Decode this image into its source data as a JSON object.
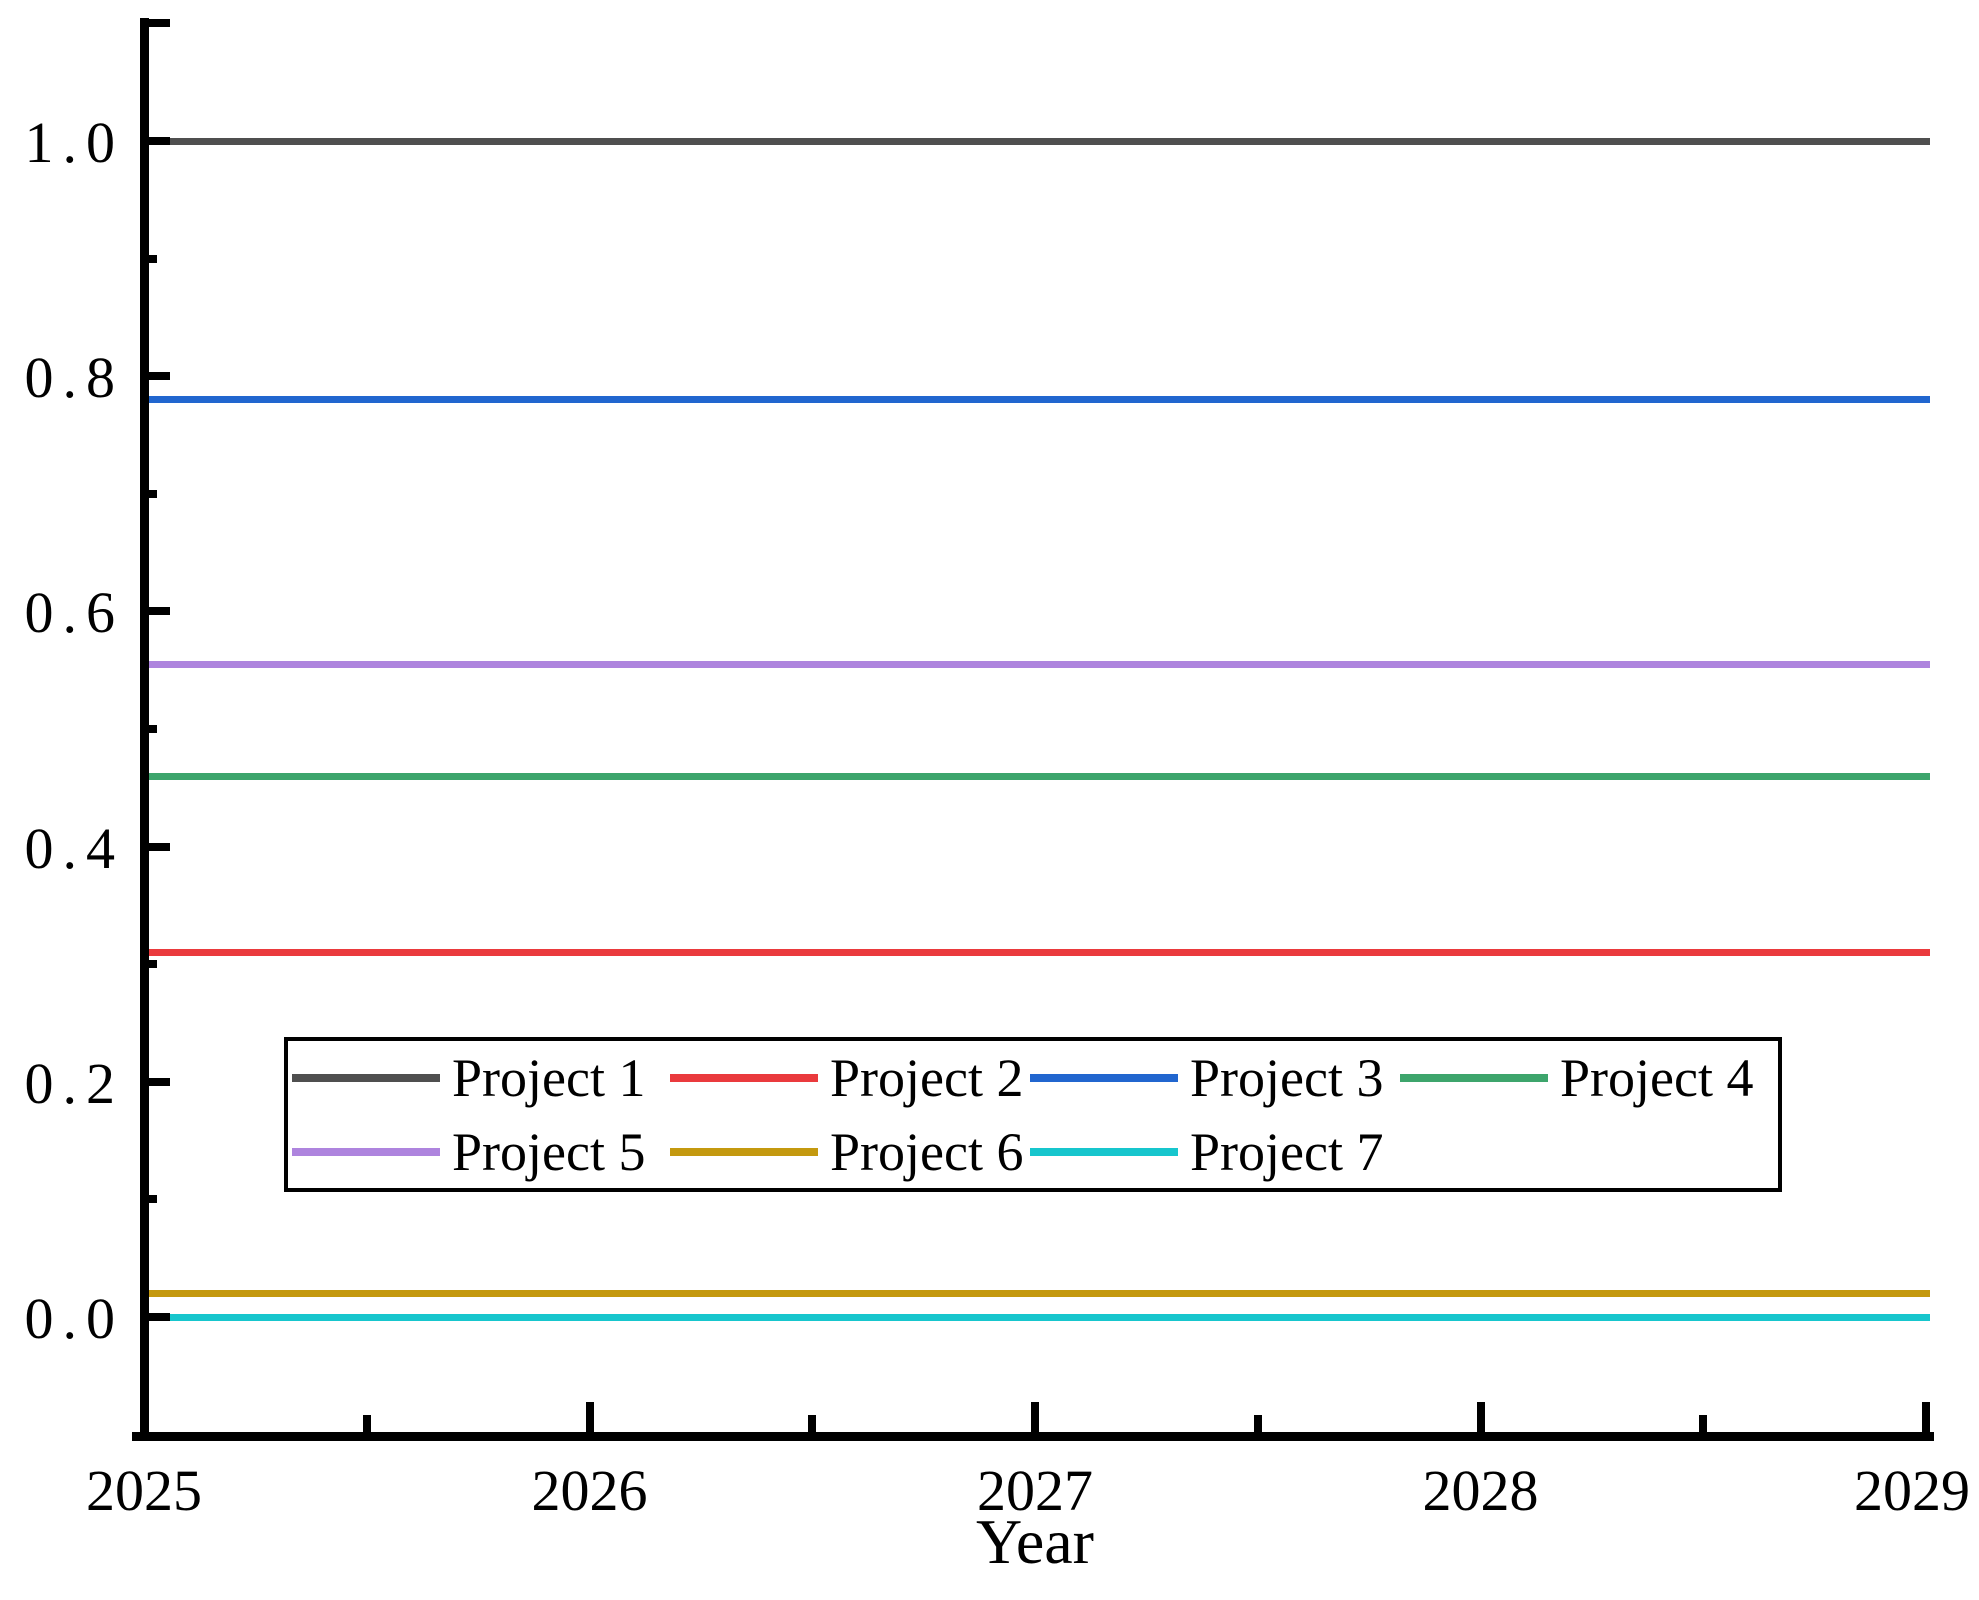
{
  "figure": {
    "background": "#ffffff",
    "text_color": "#000000"
  },
  "chart_data": {
    "type": "line",
    "xlabel": "Year",
    "ylabel": "",
    "xlim": [
      2025,
      2029
    ],
    "ylim": [
      -0.1,
      1.1
    ],
    "grid": false,
    "legend_position": "inside lower-center, 2 rows (4 + 3 entries)",
    "x": [
      2025,
      2029
    ],
    "x_major_ticks": [
      2025,
      2026,
      2027,
      2028,
      2029
    ],
    "x_minor_ticks": [
      2025.5,
      2026.5,
      2027.5,
      2028.5
    ],
    "x_tick_labels": [
      "2025",
      "2026",
      "2027",
      "2028",
      "2029"
    ],
    "y_major_ticks": [
      0.0,
      0.2,
      0.4,
      0.6,
      0.8,
      1.0
    ],
    "y_minor_ticks": [
      0.1,
      0.3,
      0.5,
      0.7,
      0.9
    ],
    "y_axis_cap_tick": 1.1,
    "y_tick_labels": [
      "0.0",
      "0.2",
      "0.4",
      "0.6",
      "0.8",
      "1.0"
    ],
    "series": [
      {
        "name": "Project 1",
        "value": 1.0,
        "values": [
          1.0,
          1.0
        ],
        "color": "#4f4f4f"
      },
      {
        "name": "Project 2",
        "value": 0.31,
        "values": [
          0.31,
          0.31
        ],
        "color": "#ea3a3d"
      },
      {
        "name": "Project 3",
        "value": 0.78,
        "values": [
          0.78,
          0.78
        ],
        "color": "#2166cf"
      },
      {
        "name": "Project 4",
        "value": 0.46,
        "values": [
          0.46,
          0.46
        ],
        "color": "#3da56c"
      },
      {
        "name": "Project 5",
        "value": 0.555,
        "values": [
          0.555,
          0.555
        ],
        "color": "#ae84de"
      },
      {
        "name": "Project 6",
        "value": 0.02,
        "values": [
          0.02,
          0.02
        ],
        "color": "#c4990f"
      },
      {
        "name": "Project 7",
        "value": 0.0,
        "values": [
          0.0,
          0.0
        ],
        "color": "#17c6cd"
      }
    ]
  }
}
